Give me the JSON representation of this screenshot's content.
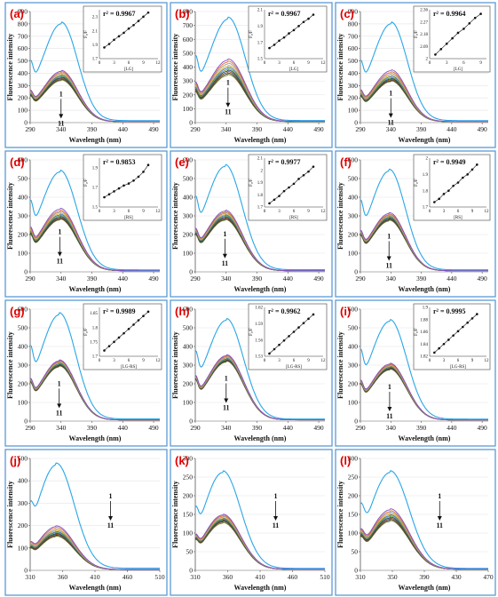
{
  "figure": {
    "border_color": "#5b9bd5"
  },
  "series_colors": [
    "#2aa6e8",
    "#7f4fc9",
    "#e06a2c",
    "#9a9a9a",
    "#e0b020",
    "#3b6fc4",
    "#5aa53a",
    "#1f3c78",
    "#8a4a1e",
    "#3f3f3f",
    "#6e7a22"
  ],
  "chart_data": [
    {
      "type": "line",
      "panel": "(a)",
      "xlabel": "Wavelength (nm)",
      "ylabel": "Fluorescence intensity",
      "xlim": [
        290,
        500
      ],
      "ylim": [
        0,
        900
      ],
      "xticks": [
        "290",
        "340",
        "390",
        "440",
        "490"
      ],
      "yticks": [
        "0",
        "100",
        "200",
        "300",
        "400",
        "500",
        "600",
        "700",
        "800",
        "900"
      ],
      "peak_x": 340,
      "peak_values": [
        800,
        415,
        405,
        395,
        385,
        378,
        370,
        362,
        355,
        347,
        340
      ],
      "start_frac": 0.25,
      "width": 27,
      "min_frac": 0.45,
      "arrow_top": "1",
      "arrow_bottom": "11",
      "inset": {
        "r2": "r² = 0.9967",
        "xlabel": "[LG]",
        "ylabel": "F₀/F",
        "xticks": [
          "0",
          "3",
          "6",
          "9",
          "12"
        ],
        "yticks": [
          "1.7",
          "1.9",
          "2.1",
          "2.3"
        ],
        "xlim": [
          0,
          12
        ],
        "ylim": [
          1.7,
          2.4
        ],
        "x": [
          1,
          2,
          3,
          4,
          5,
          6,
          7,
          8,
          9,
          10
        ],
        "y": [
          1.86,
          1.91,
          1.97,
          2.02,
          2.07,
          2.13,
          2.18,
          2.24,
          2.3,
          2.36
        ]
      }
    },
    {
      "type": "line",
      "panel": "(b)",
      "xlabel": "Wavelength (nm)",
      "ylabel": "Fluorescence intensity",
      "xlim": [
        290,
        500
      ],
      "ylim": [
        0,
        800
      ],
      "xticks": [
        "290",
        "340",
        "390",
        "440",
        "490"
      ],
      "yticks": [
        "0",
        "100",
        "200",
        "300",
        "400",
        "500",
        "600",
        "700",
        "800"
      ],
      "peak_x": 343,
      "peak_values": [
        745,
        450,
        435,
        420,
        405,
        392,
        380,
        370,
        360,
        350,
        340
      ],
      "start_frac": 0.28,
      "width": 28,
      "min_frac": 0.45,
      "arrow_top": "1",
      "arrow_bottom": "11",
      "inset": {
        "r2": "r² = 0.9967",
        "xlabel": "[LG]",
        "ylabel": "F₀/F",
        "xticks": [
          "0",
          "3",
          "6",
          "9",
          "12"
        ],
        "yticks": [
          "1.5",
          "1.7",
          "1.9",
          "2.1"
        ],
        "xlim": [
          0,
          12
        ],
        "ylim": [
          1.5,
          2.1
        ],
        "x": [
          1,
          2,
          3,
          4,
          5,
          6,
          7,
          8,
          9,
          10
        ],
        "y": [
          1.63,
          1.67,
          1.72,
          1.76,
          1.81,
          1.85,
          1.9,
          1.95,
          1.99,
          2.04
        ]
      }
    },
    {
      "type": "line",
      "panel": "(c)",
      "xlabel": "Wavelength (nm)",
      "ylabel": "Fluorescence intensity",
      "xlim": [
        290,
        500
      ],
      "ylim": [
        0,
        900
      ],
      "xticks": [
        "290",
        "340",
        "390",
        "440",
        "490"
      ],
      "yticks": [
        "0",
        "100",
        "200",
        "300",
        "400",
        "500",
        "600",
        "700",
        "800",
        "900"
      ],
      "peak_x": 340,
      "peak_values": [
        800,
        420,
        405,
        392,
        380,
        370,
        360,
        352,
        345,
        338,
        332
      ],
      "start_frac": 0.25,
      "width": 27,
      "min_frac": 0.45,
      "arrow_top": "1",
      "arrow_bottom": "11",
      "inset": {
        "r2": "r² = 0.9964",
        "xlabel": "[LG]",
        "ylabel": "F₀/F",
        "xticks": [
          "0",
          "3",
          "6",
          "9"
        ],
        "yticks": [
          "2",
          "2.09",
          "2.18",
          "2.27",
          "2.36"
        ],
        "xlim": [
          0,
          10
        ],
        "ylim": [
          2,
          2.36
        ],
        "x": [
          1,
          2,
          3,
          4,
          5,
          6,
          7,
          8,
          9
        ],
        "y": [
          2.03,
          2.07,
          2.11,
          2.15,
          2.19,
          2.22,
          2.26,
          2.3,
          2.33
        ]
      }
    },
    {
      "type": "line",
      "panel": "(d)",
      "xlabel": "Wavelength (nm)",
      "ylabel": "Fluorescence intensity",
      "xlim": [
        290,
        500
      ],
      "ylim": [
        0,
        600
      ],
      "xticks": [
        "290",
        "340",
        "390",
        "440",
        "490"
      ],
      "yticks": [
        "0",
        "100",
        "200",
        "300",
        "400",
        "500",
        "600"
      ],
      "peak_x": 338,
      "peak_values": [
        535,
        335,
        325,
        318,
        310,
        304,
        298,
        292,
        287,
        282,
        278
      ],
      "start_frac": 0.3,
      "width": 28,
      "min_frac": 0.45,
      "arrow_top": "1",
      "arrow_bottom": "11",
      "inset": {
        "r2": "r² = 0.9853",
        "xlabel": "[RS]",
        "ylabel": "F₀/F",
        "xticks": [
          "0",
          "3",
          "6",
          "9",
          "12"
        ],
        "yticks": [
          "1.5",
          "1.7",
          "1.9"
        ],
        "xlim": [
          0,
          12
        ],
        "ylim": [
          1.5,
          2.0
        ],
        "x": [
          1,
          2,
          3,
          4,
          5,
          6,
          7,
          8,
          9,
          10
        ],
        "y": [
          1.6,
          1.63,
          1.66,
          1.69,
          1.72,
          1.74,
          1.77,
          1.81,
          1.86,
          1.93
        ]
      }
    },
    {
      "type": "line",
      "panel": "(e)",
      "xlabel": "Wavelength (nm)",
      "ylabel": "Fluorescence intensity",
      "xlim": [
        290,
        500
      ],
      "ylim": [
        0,
        600
      ],
      "xticks": [
        "290",
        "340",
        "390",
        "440",
        "490"
      ],
      "yticks": [
        "0",
        "100",
        "200",
        "300",
        "400",
        "500",
        "600"
      ],
      "peak_x": 338,
      "peak_values": [
        565,
        325,
        318,
        312,
        306,
        300,
        295,
        290,
        285,
        280,
        276
      ],
      "start_frac": 0.3,
      "width": 28,
      "min_frac": 0.45,
      "arrow_top": "1",
      "arrow_bottom": "11",
      "inset": {
        "r2": "r² = 0.9977",
        "xlabel": "[RS]",
        "ylabel": "F₀/F",
        "xticks": [
          "0",
          "3",
          "6",
          "9",
          "12"
        ],
        "yticks": [
          "1.7",
          "1.8",
          "1.9",
          "2",
          "2.1"
        ],
        "xlim": [
          0,
          12
        ],
        "ylim": [
          1.7,
          2.1
        ],
        "x": [
          1,
          2,
          3,
          4,
          5,
          6,
          7,
          8,
          9,
          10
        ],
        "y": [
          1.73,
          1.76,
          1.79,
          1.83,
          1.86,
          1.89,
          1.93,
          1.96,
          1.99,
          2.03
        ]
      }
    },
    {
      "type": "line",
      "panel": "(f)",
      "xlabel": "Wavelength (nm)",
      "ylabel": "Fluorescence intensity",
      "xlim": [
        290,
        500
      ],
      "ylim": [
        0,
        600
      ],
      "xticks": [
        "290",
        "340",
        "390",
        "440",
        "490"
      ],
      "yticks": [
        "0",
        "100",
        "200",
        "300",
        "400",
        "500",
        "600"
      ],
      "peak_x": 337,
      "peak_values": [
        540,
        312,
        305,
        300,
        296,
        292,
        288,
        284,
        280,
        276,
        272
      ],
      "start_frac": 0.3,
      "width": 27,
      "min_frac": 0.45,
      "arrow_top": "1",
      "arrow_bottom": "11",
      "inset": {
        "r2": "r² = 0.9949",
        "xlabel": "[RS]",
        "ylabel": "F₀/F",
        "xticks": [
          "0",
          "3",
          "6",
          "9",
          "12"
        ],
        "yticks": [
          "1.7",
          "1.8",
          "1.9",
          "2"
        ],
        "xlim": [
          0,
          12
        ],
        "ylim": [
          1.7,
          2.0
        ],
        "x": [
          1,
          2,
          3,
          4,
          5,
          6,
          7,
          8,
          9,
          10
        ],
        "y": [
          1.73,
          1.75,
          1.78,
          1.8,
          1.83,
          1.85,
          1.88,
          1.9,
          1.93,
          1.96
        ]
      }
    },
    {
      "type": "line",
      "panel": "(g)",
      "xlabel": "Wavelength (nm)",
      "ylabel": "Fluorescence intensity",
      "xlim": [
        290,
        500
      ],
      "ylim": [
        0,
        600
      ],
      "xticks": [
        "290",
        "340",
        "390",
        "440",
        "490"
      ],
      "yticks": [
        "0",
        "100",
        "200",
        "300",
        "400",
        "500",
        "600"
      ],
      "peak_x": 337,
      "peak_values": [
        570,
        322,
        318,
        314,
        310,
        306,
        302,
        299,
        296,
        293,
        290
      ],
      "start_frac": 0.3,
      "width": 27,
      "min_frac": 0.45,
      "arrow_top": "1",
      "arrow_bottom": "11",
      "inset": {
        "r2": "r² = 0.9989",
        "xlabel": "[LG-RS]",
        "ylabel": "F₀/F",
        "xticks": [
          "0",
          "3",
          "6",
          "9",
          "12"
        ],
        "yticks": [
          "1.7",
          "1.75",
          "1.8",
          "1.85"
        ],
        "xlim": [
          0,
          12
        ],
        "ylim": [
          1.7,
          1.87
        ],
        "x": [
          1,
          2,
          3,
          4,
          5,
          6,
          7,
          8,
          9,
          10
        ],
        "y": [
          1.72,
          1.735,
          1.75,
          1.765,
          1.78,
          1.795,
          1.81,
          1.825,
          1.84,
          1.855
        ]
      }
    },
    {
      "type": "line",
      "panel": "(h)",
      "xlabel": "Wavelength (nm)",
      "ylabel": "Fluorescence intensity",
      "xlim": [
        290,
        500
      ],
      "ylim": [
        0,
        600
      ],
      "xticks": [
        "290",
        "340",
        "390",
        "440",
        "490"
      ],
      "yticks": [
        "0",
        "100",
        "200",
        "300",
        "400",
        "500",
        "600"
      ],
      "peak_x": 340,
      "peak_values": [
        540,
        350,
        345,
        340,
        336,
        332,
        328,
        325,
        322,
        319,
        316
      ],
      "start_frac": 0.3,
      "width": 28,
      "min_frac": 0.45,
      "arrow_top": "1",
      "arrow_bottom": "11",
      "inset": {
        "r2": "r² = 0.9962",
        "xlabel": "[LG-RS]",
        "ylabel": "F₀/F",
        "xticks": [
          "0",
          "3",
          "6",
          "9",
          "12"
        ],
        "yticks": [
          "1.53",
          "1.56",
          "1.59",
          "1.62"
        ],
        "xlim": [
          0,
          12
        ],
        "ylim": [
          1.53,
          1.62
        ],
        "x": [
          1,
          2,
          3,
          4,
          5,
          6,
          7,
          8,
          9,
          10
        ],
        "y": [
          1.535,
          1.543,
          1.551,
          1.559,
          1.567,
          1.575,
          1.583,
          1.591,
          1.599,
          1.607
        ]
      }
    },
    {
      "type": "line",
      "panel": "(i)",
      "xlabel": "Wavelength (nm)",
      "ylabel": "Fluorescence intensity",
      "xlim": [
        290,
        500
      ],
      "ylim": [
        0,
        600
      ],
      "xticks": [
        "290",
        "340",
        "390",
        "440",
        "490"
      ],
      "yticks": [
        "0",
        "100",
        "200",
        "300",
        "400",
        "500",
        "600"
      ],
      "peak_x": 338,
      "peak_values": [
        535,
        305,
        300,
        296,
        292,
        289,
        286,
        283,
        280,
        277,
        274
      ],
      "start_frac": 0.3,
      "width": 28,
      "min_frac": 0.45,
      "arrow_top": "1",
      "arrow_bottom": "11",
      "inset": {
        "r2": "r² = 0.9995",
        "xlabel": "[LG-RS]",
        "ylabel": "F₀/F",
        "xticks": [
          "0",
          "3",
          "6",
          "9",
          "12"
        ],
        "yticks": [
          "1.82",
          "1.84",
          "1.86",
          "1.88",
          "1.9"
        ],
        "xlim": [
          0,
          12
        ],
        "ylim": [
          1.82,
          1.9
        ],
        "x": [
          1,
          2,
          3,
          4,
          5,
          6,
          7,
          8,
          9,
          10
        ],
        "y": [
          1.826,
          1.833,
          1.84,
          1.847,
          1.854,
          1.861,
          1.868,
          1.875,
          1.882,
          1.889
        ]
      }
    },
    {
      "type": "line",
      "panel": "(j)",
      "xlabel": "Wavelength (nm)",
      "ylabel": "Fluorescence intensity",
      "xlim": [
        310,
        510
      ],
      "ylim": [
        0,
        500
      ],
      "xticks": [
        "310",
        "360",
        "410",
        "460",
        "510"
      ],
      "yticks": [
        "0",
        "100",
        "200",
        "300",
        "400",
        "500"
      ],
      "peak_x": 350,
      "peak_values": [
        470,
        195,
        188,
        180,
        175,
        170,
        166,
        162,
        158,
        154,
        150
      ],
      "start_frac": 0.22,
      "width": 28,
      "min_frac": 0.2,
      "arrow_top": "1",
      "arrow_bottom": "11",
      "inset": null
    },
    {
      "type": "line",
      "panel": "(k)",
      "xlabel": "Wavelength (nm)",
      "ylabel": "Fluorescence intensity",
      "xlim": [
        310,
        510
      ],
      "ylim": [
        0,
        300
      ],
      "xticks": [
        "310",
        "360",
        "410",
        "460",
        "510"
      ],
      "yticks": [
        "0",
        "50",
        "100",
        "150",
        "200",
        "250",
        "300"
      ],
      "peak_x": 352,
      "peak_values": [
        262,
        148,
        145,
        142,
        139,
        137,
        135,
        133,
        131,
        129,
        126
      ],
      "start_frac": 0.25,
      "width": 28,
      "min_frac": 0.2,
      "arrow_top": "1",
      "arrow_bottom": "11",
      "inset": null
    },
    {
      "type": "line",
      "panel": "(l)",
      "xlabel": "Wavelength (nm)",
      "ylabel": "Fluorescence intensity",
      "xlim": [
        310,
        470
      ],
      "ylim": [
        0,
        300
      ],
      "xticks": [
        "310",
        "350",
        "390",
        "430",
        "470"
      ],
      "yticks": [
        "0",
        "50",
        "100",
        "150",
        "200",
        "250",
        "300"
      ],
      "peak_x": 347,
      "peak_values": [
        262,
        162,
        157,
        153,
        149,
        146,
        143,
        140,
        137,
        134,
        131
      ],
      "start_frac": 0.3,
      "width": 24,
      "min_frac": 0.2,
      "arrow_top": "1",
      "arrow_bottom": "11",
      "inset": null
    }
  ]
}
